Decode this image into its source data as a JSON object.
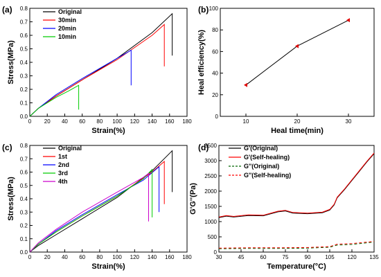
{
  "chart_data": [
    {
      "panel": "(a)",
      "type": "line",
      "xlabel": "Strain(%)",
      "ylabel": "Stress(MPa)",
      "xlim": [
        0,
        180
      ],
      "ylim": [
        0,
        0.8
      ],
      "xticks": [
        "0",
        "20",
        "40",
        "60",
        "80",
        "100",
        "120",
        "140",
        "160",
        "180"
      ],
      "yticks": [
        "0.0",
        "0.1",
        "0.2",
        "0.3",
        "0.4",
        "0.5",
        "0.6",
        "0.7",
        "0.8"
      ],
      "legend_position": "top-left",
      "series": [
        {
          "name": "Original",
          "color": "#000000",
          "x": [
            0,
            10,
            30,
            60,
            100,
            140,
            163,
            163
          ],
          "y": [
            0,
            0.06,
            0.15,
            0.27,
            0.43,
            0.62,
            0.76,
            0.45
          ]
        },
        {
          "name": "30min",
          "color": "#ff0000",
          "x": [
            0,
            10,
            30,
            60,
            100,
            140,
            154,
            154
          ],
          "y": [
            0,
            0.06,
            0.15,
            0.27,
            0.42,
            0.6,
            0.68,
            0.37
          ]
        },
        {
          "name": "20min",
          "color": "#0000ff",
          "x": [
            0,
            10,
            30,
            60,
            100,
            116,
            116
          ],
          "y": [
            0,
            0.06,
            0.16,
            0.28,
            0.43,
            0.49,
            0.23
          ]
        },
        {
          "name": "10min",
          "color": "#00cc00",
          "x": [
            0,
            10,
            30,
            45,
            56,
            56
          ],
          "y": [
            0,
            0.06,
            0.14,
            0.19,
            0.23,
            0.05
          ]
        }
      ]
    },
    {
      "panel": "(b)",
      "type": "line",
      "xlabel": "Heal time(min)",
      "ylabel": "Heal efficiency(%)",
      "xlim": [
        5,
        35
      ],
      "ylim": [
        0,
        100
      ],
      "xticks": [
        "10",
        "20",
        "30"
      ],
      "yticks": [
        "0",
        "20",
        "40",
        "60",
        "80",
        "100"
      ],
      "series": [
        {
          "name": "",
          "color": "#000000",
          "x": [
            10,
            20,
            30
          ],
          "y": [
            29,
            65,
            89
          ]
        }
      ]
    },
    {
      "panel": "(c)",
      "type": "line",
      "xlabel": "Strain(%)",
      "ylabel": "Stress(MPa)",
      "xlim": [
        0,
        180
      ],
      "ylim": [
        0,
        0.8
      ],
      "xticks": [
        "0",
        "20",
        "40",
        "60",
        "80",
        "100",
        "120",
        "140",
        "160",
        "180"
      ],
      "yticks": [
        "0.0",
        "0.1",
        "0.2",
        "0.3",
        "0.4",
        "0.5",
        "0.6",
        "0.7",
        "0.8"
      ],
      "legend_position": "top-left",
      "series": [
        {
          "name": "Original",
          "color": "#000000",
          "x": [
            0,
            10,
            30,
            60,
            100,
            140,
            163,
            163
          ],
          "y": [
            0,
            0.05,
            0.13,
            0.25,
            0.41,
            0.61,
            0.76,
            0.45
          ]
        },
        {
          "name": "1st",
          "color": "#ff0000",
          "x": [
            0,
            10,
            30,
            60,
            100,
            140,
            154,
            154
          ],
          "y": [
            0,
            0.06,
            0.15,
            0.27,
            0.42,
            0.6,
            0.68,
            0.36
          ]
        },
        {
          "name": "2nd",
          "color": "#0000ff",
          "x": [
            0,
            10,
            30,
            60,
            100,
            130,
            148,
            148
          ],
          "y": [
            0,
            0.06,
            0.16,
            0.28,
            0.43,
            0.54,
            0.64,
            0.3
          ]
        },
        {
          "name": "3rd",
          "color": "#00cc00",
          "x": [
            0,
            10,
            30,
            60,
            100,
            130,
            140,
            140
          ],
          "y": [
            0,
            0.06,
            0.15,
            0.27,
            0.42,
            0.55,
            0.62,
            0.26
          ]
        },
        {
          "name": "4th",
          "color": "#cc00cc",
          "x": [
            0,
            10,
            30,
            60,
            100,
            130,
            136,
            136
          ],
          "y": [
            0,
            0.07,
            0.17,
            0.3,
            0.45,
            0.56,
            0.59,
            0.23
          ]
        }
      ]
    },
    {
      "panel": "(d)",
      "type": "line",
      "xlabel": "Temperature(°C)",
      "ylabel": "G'G''(Pa)",
      "xlim": [
        30,
        135
      ],
      "ylim": [
        0,
        3500
      ],
      "xticks": [
        "30",
        "45",
        "60",
        "75",
        "90",
        "105",
        "120",
        "135"
      ],
      "yticks": [
        "0",
        "500",
        "1000",
        "1500",
        "2000",
        "2500",
        "3000",
        "3500"
      ],
      "legend_position": "top-left",
      "series": [
        {
          "name": "G'(Original)",
          "color": "#000000",
          "dash": "solid",
          "x": [
            30,
            35,
            40,
            50,
            60,
            70,
            75,
            80,
            90,
            100,
            105,
            108,
            110,
            115,
            120,
            125,
            130,
            135
          ],
          "y": [
            1130,
            1180,
            1150,
            1200,
            1190,
            1320,
            1350,
            1280,
            1260,
            1290,
            1380,
            1550,
            1780,
            2050,
            2350,
            2650,
            2950,
            3230
          ]
        },
        {
          "name": "G'(Self-healing)",
          "color": "#ff0000",
          "dash": "solid",
          "x": [
            30,
            35,
            40,
            50,
            60,
            70,
            75,
            80,
            90,
            100,
            105,
            108,
            110,
            115,
            120,
            125,
            130,
            135
          ],
          "y": [
            1150,
            1200,
            1170,
            1220,
            1210,
            1340,
            1370,
            1300,
            1280,
            1310,
            1400,
            1570,
            1800,
            2070,
            2370,
            2670,
            2970,
            3250
          ]
        },
        {
          "name": "G''(Original)",
          "color": "#006600",
          "dash": "dashed",
          "x": [
            30,
            50,
            70,
            90,
            105,
            110,
            120,
            135
          ],
          "y": [
            110,
            120,
            120,
            130,
            160,
            230,
            250,
            330
          ]
        },
        {
          "name": "G''(Self-healing)",
          "color": "#ff0000",
          "dash": "dashed",
          "x": [
            30,
            50,
            70,
            90,
            105,
            110,
            120,
            135
          ],
          "y": [
            130,
            140,
            140,
            150,
            180,
            260,
            280,
            350
          ]
        }
      ]
    }
  ]
}
